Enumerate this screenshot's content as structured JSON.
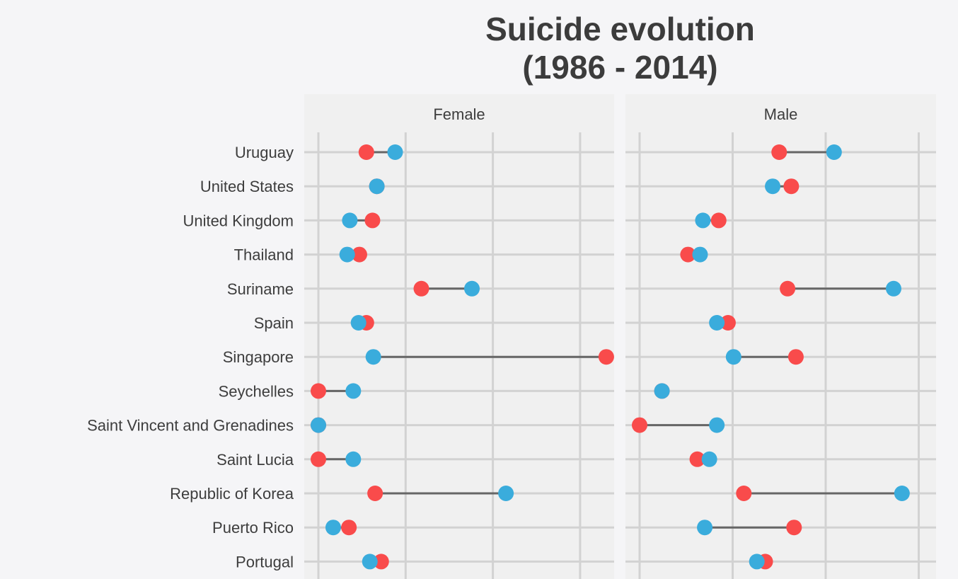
{
  "chart_data": {
    "type": "dumbbell",
    "title_line1": "Suicide evolution",
    "title_line2": "(1986 - 2014)",
    "xlabel": "",
    "ylabel": "",
    "grid": true,
    "colors": {
      "start": "#f94b4b",
      "end": "#3aacdc",
      "segment": "#666666",
      "panel": "#f0f0f0",
      "gridline": "#d2d2d2"
    },
    "categories": [
      "Uruguay",
      "United States",
      "United Kingdom",
      "Thailand",
      "Suriname",
      "Spain",
      "Singapore",
      "Seychelles",
      "Saint Vincent and Grenadines",
      "Saint Lucia",
      "Republic of Korea",
      "Puerto Rico",
      "Portugal"
    ],
    "xlim": [
      -1.8,
      40
    ],
    "facets": [
      {
        "name": "Female",
        "series": [
          {
            "color_key": "start",
            "values": [
              5.5,
              6.7,
              6.2,
              4.7,
              11.8,
              5.5,
              33.0,
              0.0,
              0.0,
              0.0,
              6.5,
              3.5,
              7.2
            ]
          },
          {
            "color_key": "end",
            "values": [
              8.8,
              6.7,
              3.6,
              3.3,
              17.6,
              4.6,
              6.3,
              4.0,
              0.0,
              4.0,
              21.5,
              1.7,
              5.9
            ]
          }
        ]
      },
      {
        "name": "Male",
        "series": [
          {
            "color_key": "start",
            "values": [
              15.0,
              16.3,
              8.5,
              5.2,
              15.9,
              9.5,
              16.8,
              2.4,
              0.0,
              6.2,
              11.2,
              16.6,
              13.5
            ]
          },
          {
            "color_key": "end",
            "values": [
              20.9,
              14.3,
              6.8,
              6.5,
              27.3,
              8.3,
              10.1,
              2.4,
              8.3,
              7.5,
              28.2,
              7.0,
              12.6
            ]
          }
        ]
      }
    ]
  }
}
